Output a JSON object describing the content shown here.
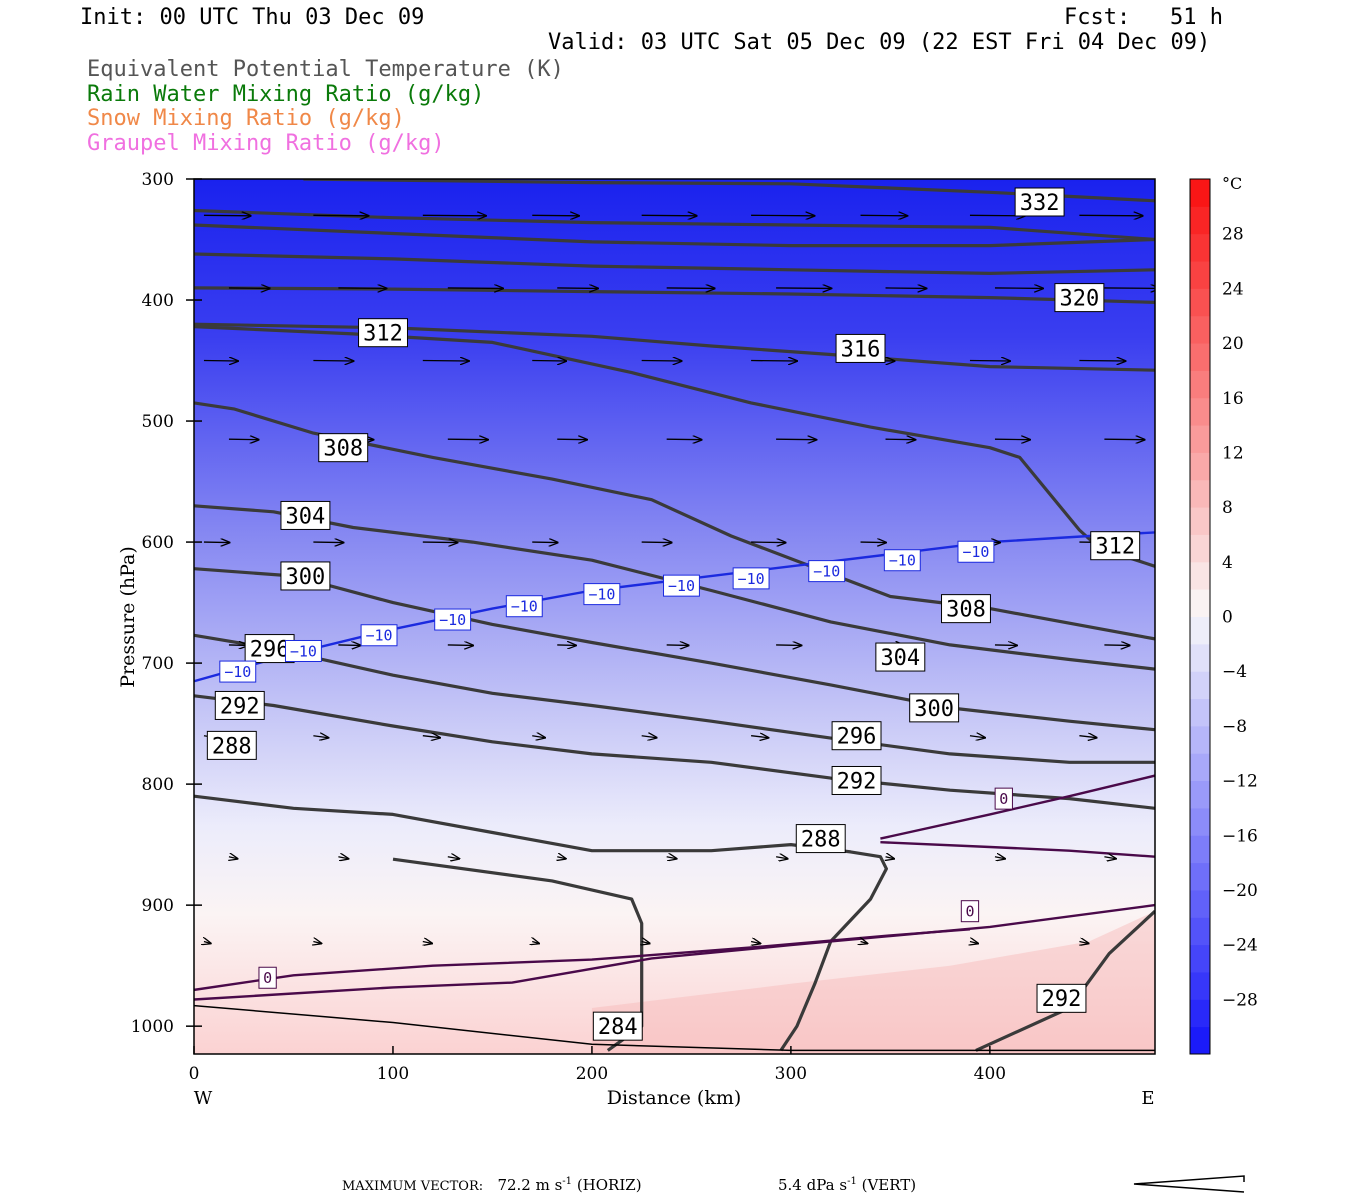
{
  "header": {
    "init": "Init: 00 UTC Thu 03 Dec 09",
    "fcst": "Fcst:   51 h",
    "valid": "Valid: 03 UTC Sat 05 Dec 09 (22 EST Fri 04 Dec 09)"
  },
  "legend": [
    {
      "label": "Equivalent Potential Temperature (K)",
      "color": "#555555"
    },
    {
      "label": "Rain Water Mixing Ratio (g/kg)",
      "color": "#0a7a0a"
    },
    {
      "label": "Snow Mixing Ratio (g/kg)",
      "color": "#f08848"
    },
    {
      "label": "Graupel Mixing Ratio (g/kg)",
      "color": "#f070e0"
    }
  ],
  "chart_data": {
    "type": "contour",
    "xlabel": "Distance (km)",
    "ylabel": "Pressure (hPa)",
    "xlim": [
      0,
      483
    ],
    "ylim": [
      1023,
      300
    ],
    "x_ticks": [
      0,
      100,
      200,
      300,
      400
    ],
    "y_ticks": [
      300,
      400,
      500,
      600,
      700,
      800,
      900,
      1000
    ],
    "x_ends": {
      "left": "W",
      "right": "E"
    },
    "colorbar": {
      "unit": "°C",
      "ticks": [
        28,
        24,
        20,
        16,
        12,
        8,
        4,
        0,
        -4,
        -8,
        -12,
        -16,
        -20,
        -24,
        -28
      ],
      "min": -32,
      "max": 32
    },
    "theta_e_contours": [
      {
        "label": "332",
        "points": [
          [
            55,
            300
          ],
          [
            200,
            303
          ],
          [
            300,
            304
          ],
          [
            400,
            311
          ],
          [
            483,
            318
          ]
        ],
        "label_at": [
          425,
          319
        ]
      },
      {
        "label": "",
        "points": [
          [
            0,
            326
          ],
          [
            100,
            332
          ],
          [
            200,
            336
          ],
          [
            300,
            338
          ],
          [
            400,
            340
          ],
          [
            483,
            350
          ]
        ]
      },
      {
        "label": "",
        "points": [
          [
            0,
            338
          ],
          [
            100,
            345
          ],
          [
            200,
            352
          ],
          [
            300,
            355
          ],
          [
            400,
            355
          ],
          [
            483,
            350
          ]
        ]
      },
      {
        "label": "",
        "points": [
          [
            0,
            362
          ],
          [
            100,
            366
          ],
          [
            200,
            372
          ],
          [
            300,
            375
          ],
          [
            400,
            378
          ],
          [
            483,
            375
          ]
        ]
      },
      {
        "label": "320",
        "points": [
          [
            0,
            390
          ],
          [
            100,
            391
          ],
          [
            200,
            393
          ],
          [
            300,
            395
          ],
          [
            400,
            398
          ],
          [
            483,
            402
          ]
        ],
        "label_at": [
          445,
          398
        ]
      },
      {
        "label": "316",
        "points": [
          [
            0,
            420
          ],
          [
            100,
            423
          ],
          [
            200,
            430
          ],
          [
            260,
            438
          ],
          [
            320,
            445
          ],
          [
            400,
            455
          ],
          [
            483,
            458
          ]
        ],
        "label_at": [
          335,
          440
        ]
      },
      {
        "label": "312",
        "points": [
          [
            0,
            422
          ],
          [
            80,
            428
          ],
          [
            150,
            435
          ],
          [
            220,
            460
          ],
          [
            280,
            485
          ],
          [
            340,
            505
          ],
          [
            400,
            522
          ],
          [
            415,
            530
          ],
          [
            445,
            590
          ],
          [
            455,
            605
          ],
          [
            483,
            620
          ]
        ],
        "label_at": [
          95,
          427
        ],
        "label2": "312",
        "label2_at": [
          463,
          603
        ]
      },
      {
        "label": "308",
        "points": [
          [
            0,
            485
          ],
          [
            20,
            490
          ],
          [
            60,
            510
          ],
          [
            120,
            530
          ],
          [
            180,
            548
          ],
          [
            230,
            565
          ],
          [
            270,
            595
          ],
          [
            310,
            620
          ],
          [
            350,
            645
          ],
          [
            400,
            655
          ],
          [
            483,
            680
          ]
        ],
        "label_at": [
          75,
          522
        ],
        "label2": "308",
        "label2_at": [
          388,
          655
        ]
      },
      {
        "label": "304",
        "points": [
          [
            0,
            570
          ],
          [
            40,
            575
          ],
          [
            80,
            588
          ],
          [
            140,
            600
          ],
          [
            200,
            615
          ],
          [
            260,
            640
          ],
          [
            320,
            666
          ],
          [
            380,
            685
          ],
          [
            440,
            697
          ],
          [
            483,
            705
          ]
        ],
        "label_at": [
          56,
          578
        ],
        "label2": "304",
        "label2_at": [
          355,
          695
        ]
      },
      {
        "label": "300",
        "points": [
          [
            0,
            622
          ],
          [
            50,
            628
          ],
          [
            100,
            650
          ],
          [
            150,
            668
          ],
          [
            200,
            683
          ],
          [
            260,
            700
          ],
          [
            320,
            718
          ],
          [
            380,
            737
          ],
          [
            440,
            748
          ],
          [
            483,
            755
          ]
        ],
        "label_at": [
          56,
          628
        ],
        "label2": "300",
        "label2_at": [
          372,
          737
        ]
      },
      {
        "label": "296",
        "points": [
          [
            0,
            677
          ],
          [
            40,
            688
          ],
          [
            100,
            710
          ],
          [
            150,
            725
          ],
          [
            200,
            735
          ],
          [
            260,
            748
          ],
          [
            320,
            762
          ],
          [
            380,
            775
          ],
          [
            440,
            782
          ],
          [
            483,
            782
          ]
        ],
        "label_at": [
          38,
          688
        ],
        "label2": "296",
        "label2_at": [
          333,
          760
        ]
      },
      {
        "label": "292",
        "points": [
          [
            0,
            727
          ],
          [
            40,
            735
          ],
          [
            100,
            752
          ],
          [
            150,
            765
          ],
          [
            200,
            775
          ],
          [
            260,
            782
          ],
          [
            320,
            795
          ],
          [
            380,
            805
          ],
          [
            440,
            812
          ],
          [
            483,
            820
          ]
        ],
        "label_at": [
          23,
          735
        ],
        "label2": "292",
        "label2_at": [
          333,
          797
        ]
      },
      {
        "label": "288",
        "points": [
          [
            0,
            810
          ],
          [
            50,
            820
          ],
          [
            100,
            825
          ],
          [
            150,
            840
          ],
          [
            200,
            855
          ],
          [
            260,
            855
          ],
          [
            300,
            850
          ],
          [
            330,
            856
          ],
          [
            345,
            860
          ],
          [
            348,
            870
          ],
          [
            340,
            895
          ],
          [
            320,
            930
          ],
          [
            312,
            965
          ],
          [
            303,
            1000
          ],
          [
            295,
            1020
          ]
        ],
        "label_at": [
          19,
          768
        ],
        "label2": "288",
        "label2_at": [
          315,
          845
        ]
      },
      {
        "label": "284",
        "points": [
          [
            100,
            862
          ],
          [
            180,
            880
          ],
          [
            220,
            895
          ],
          [
            225,
            915
          ],
          [
            225,
            1000
          ],
          [
            208,
            1020
          ]
        ],
        "label_at": [
          213,
          1000
        ]
      },
      {
        "label": "292",
        "points": [
          [
            393,
            1020
          ],
          [
            440,
            985
          ],
          [
            460,
            940
          ],
          [
            483,
            905
          ]
        ],
        "label_at": [
          436,
          977
        ]
      }
    ],
    "zero_isotherm_contours": [
      {
        "label": "0",
        "points": [
          [
            0,
            978
          ],
          [
            30,
            975
          ],
          [
            100,
            968
          ],
          [
            160,
            964
          ],
          [
            230,
            944
          ],
          [
            300,
            933
          ],
          [
            400,
            918
          ],
          [
            483,
            900
          ]
        ],
        "label_at": [
          37,
          960
        ]
      },
      {
        "label": "0",
        "points": [
          [
            0,
            970
          ],
          [
            50,
            958
          ],
          [
            120,
            950
          ],
          [
            200,
            945
          ],
          [
            280,
            935
          ],
          [
            350,
            925
          ],
          [
            390,
            920
          ]
        ],
        "label_at": [
          390,
          905
        ]
      },
      {
        "label": "0",
        "points": [
          [
            345,
            845
          ],
          [
            400,
            825
          ],
          [
            440,
            810
          ],
          [
            483,
            793
          ]
        ],
        "label_at": [
          407,
          812
        ]
      },
      {
        "label": "",
        "points": [
          [
            345,
            848
          ],
          [
            400,
            852
          ],
          [
            440,
            855
          ],
          [
            483,
            860
          ]
        ]
      }
    ],
    "minus10_isotherm": {
      "label": "−10",
      "points": [
        [
          0,
          715
        ],
        [
          50,
          692
        ],
        [
          100,
          672
        ],
        [
          150,
          655
        ],
        [
          200,
          640
        ],
        [
          250,
          630
        ],
        [
          300,
          620
        ],
        [
          350,
          610
        ],
        [
          400,
          600
        ],
        [
          450,
          595
        ],
        [
          483,
          592
        ]
      ],
      "label_positions": [
        [
          22,
          707
        ],
        [
          55,
          690
        ],
        [
          93,
          677
        ],
        [
          130,
          664
        ],
        [
          166,
          653
        ],
        [
          205,
          643
        ],
        [
          245,
          636
        ],
        [
          280,
          630
        ],
        [
          318,
          624
        ],
        [
          356,
          615
        ],
        [
          393,
          608
        ]
      ]
    },
    "wind_vectors": [
      {
        "row": 330,
        "len": 55
      },
      {
        "row": 390,
        "len": 48
      },
      {
        "row": 450,
        "len": 40
      },
      {
        "row": 515,
        "len": 35
      },
      {
        "row": 600,
        "len": 30
      },
      {
        "row": 685,
        "len": 22
      },
      {
        "row": 760,
        "len": 15
      },
      {
        "row": 860,
        "len": 10
      },
      {
        "row": 930,
        "len": 8
      }
    ],
    "surface_terrain": [
      [
        0,
        983
      ],
      [
        100,
        997
      ],
      [
        200,
        1015
      ],
      [
        300,
        1020
      ],
      [
        400,
        1020
      ],
      [
        483,
        1020
      ]
    ]
  },
  "footer": {
    "max_vector_label": "MAXIMUM VECTOR:",
    "horiz": "72.2 m s",
    "horiz_exp": "-1",
    "horiz_tag": "(HORIZ)",
    "vert": "5.4 dPa s",
    "vert_exp": "-1",
    "vert_tag": "(VERT)"
  }
}
